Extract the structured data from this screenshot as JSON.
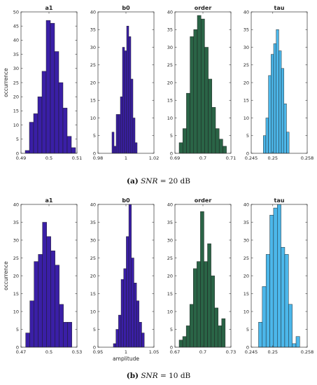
{
  "captions": [
    {
      "label": "(a)",
      "snr": "SNR",
      "rest": " = 20 dB"
    },
    {
      "label": "(b)",
      "snr": "SNR",
      "rest": " = 10 dB"
    }
  ],
  "colors": {
    "a1": "#3a1fa6",
    "b0": "#3a1fa6",
    "order": "#2a6446",
    "tau": "#4cb7ea"
  },
  "chart_data": [
    {
      "type": "bar",
      "title": "a1",
      "ylabel": "occurrence",
      "xlabel": "",
      "color": "#3a1fa6",
      "ylim": [
        0,
        50
      ],
      "yticks": [
        0,
        5,
        10,
        15,
        20,
        25,
        30,
        35,
        40,
        45,
        50
      ],
      "xlim": [
        0.49,
        0.51
      ],
      "xticks": [
        "0.49",
        "0.5",
        "0.51"
      ],
      "bin_start": 0.4915,
      "bin_width": 0.0015,
      "values": [
        1,
        11,
        14,
        20,
        29,
        47,
        46,
        36,
        25,
        16,
        6,
        2
      ]
    },
    {
      "type": "bar",
      "title": "b0",
      "ylabel": "",
      "xlabel": "",
      "color": "#3a1fa6",
      "ylim": [
        0,
        40
      ],
      "yticks": [
        0,
        5,
        10,
        15,
        20,
        25,
        30,
        35,
        40
      ],
      "xlim": [
        0.98,
        1.02
      ],
      "xticks": [
        "0.98",
        "1",
        "1.02"
      ],
      "bin_start": 0.99,
      "bin_width": 0.0015,
      "values": [
        6,
        2,
        11,
        11,
        16,
        30,
        29,
        36,
        33,
        21,
        10,
        3
      ]
    },
    {
      "type": "bar",
      "title": "order",
      "ylabel": "",
      "xlabel": "",
      "color": "#2a6446",
      "ylim": [
        0,
        40
      ],
      "yticks": [
        0,
        5,
        10,
        15,
        20,
        25,
        30,
        35,
        40
      ],
      "xlim": [
        0.69,
        0.71
      ],
      "xticks": [
        "0.69",
        "0.7",
        "0.71"
      ],
      "bin_start": 0.6915,
      "bin_width": 0.0013,
      "values": [
        3,
        7,
        17,
        33,
        35,
        39,
        38,
        30,
        21,
        13,
        7,
        4,
        2
      ]
    },
    {
      "type": "bar",
      "title": "tau",
      "ylabel": "",
      "xlabel": "",
      "color": "#4cb7ea",
      "ylim": [
        0,
        40
      ],
      "yticks": [
        0,
        5,
        10,
        15,
        20,
        25,
        30,
        35,
        40
      ],
      "xlim": [
        0.245,
        0.258
      ],
      "xticks": [
        "0.245",
        "0.25",
        "0.258"
      ],
      "bin_start": 0.2478,
      "bin_width": 0.0006,
      "values": [
        5,
        10,
        22,
        28,
        31,
        35,
        29,
        24,
        14,
        6
      ]
    },
    {
      "type": "bar",
      "title": "a1",
      "ylabel": "occurrence",
      "xlabel": "",
      "color": "#3a1fa6",
      "ylim": [
        0,
        40
      ],
      "yticks": [
        0,
        5,
        10,
        15,
        20,
        25,
        30,
        35,
        40
      ],
      "xlim": [
        0.47,
        0.53
      ],
      "xticks": [
        "0.47",
        "0.5",
        "0.53"
      ],
      "bin_start": 0.475,
      "bin_width": 0.0045,
      "values": [
        4,
        13,
        24,
        26,
        35,
        31,
        27,
        23,
        12,
        7,
        7
      ]
    },
    {
      "type": "bar",
      "title": "b0",
      "ylabel": "",
      "xlabel": "amplitude",
      "color": "#3a1fa6",
      "ylim": [
        0,
        40
      ],
      "yticks": [
        0,
        5,
        10,
        15,
        20,
        25,
        30,
        35,
        40
      ],
      "xlim": [
        0.95,
        1.05
      ],
      "xticks": [
        "0.95",
        "1",
        "1.05"
      ],
      "bin_start": 0.9775,
      "bin_width": 0.0046,
      "values": [
        1,
        5,
        9,
        19,
        22,
        31,
        40,
        25,
        18,
        13,
        7,
        4
      ]
    },
    {
      "type": "bar",
      "title": "order",
      "ylabel": "",
      "xlabel": "",
      "color": "#2a6446",
      "ylim": [
        0,
        40
      ],
      "yticks": [
        0,
        5,
        10,
        15,
        20,
        25,
        30,
        35,
        40
      ],
      "xlim": [
        0.67,
        0.73
      ],
      "xticks": [
        "0.67",
        "0.7",
        "0.73"
      ],
      "bin_start": 0.6745,
      "bin_width": 0.0038,
      "values": [
        2,
        3,
        6,
        12,
        22,
        24,
        38,
        24,
        29,
        20,
        11,
        6,
        8
      ]
    },
    {
      "type": "bar",
      "title": "tau",
      "ylabel": "",
      "xlabel": "",
      "color": "#4cb7ea",
      "ylim": [
        0,
        40
      ],
      "yticks": [
        0,
        5,
        10,
        15,
        20,
        25,
        30,
        35,
        40
      ],
      "xlim": [
        0.245,
        0.258
      ],
      "xticks": [
        "0.245",
        "0.25",
        "0.258"
      ],
      "bin_start": 0.2467,
      "bin_width": 0.00087,
      "values": [
        7,
        17,
        26,
        37,
        39,
        40,
        28,
        26,
        12,
        1,
        3
      ]
    }
  ]
}
